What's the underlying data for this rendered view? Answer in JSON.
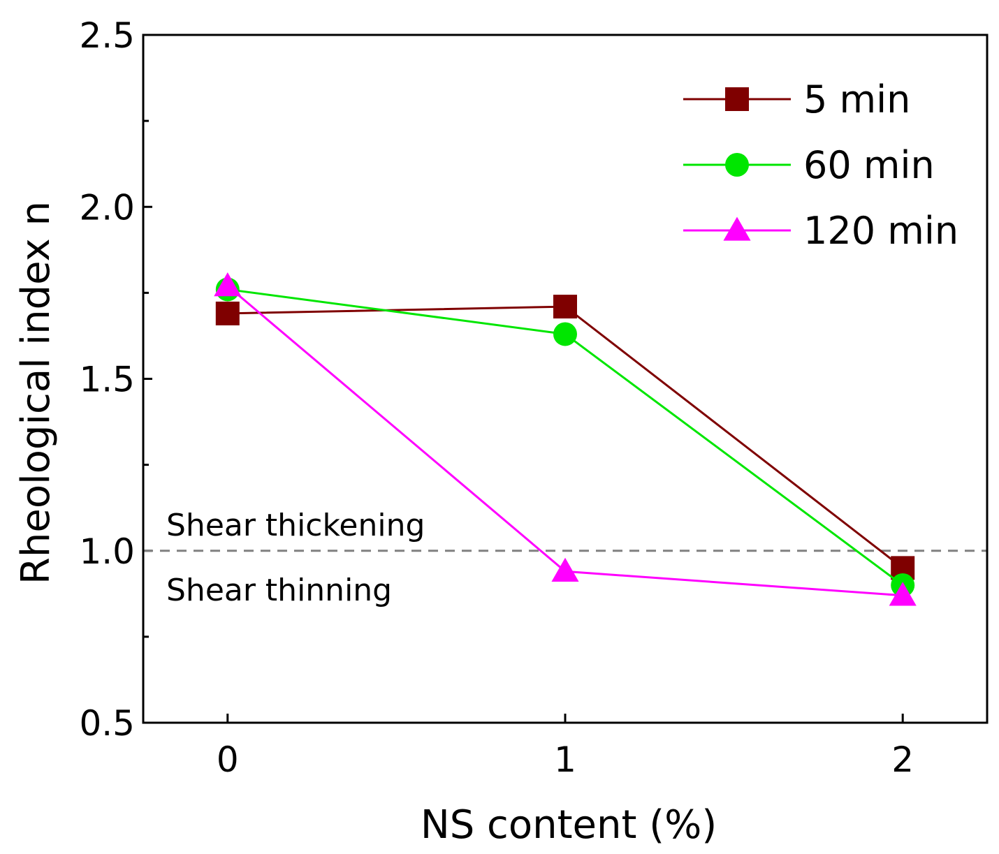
{
  "chart_data": {
    "type": "line",
    "title": "",
    "xlabel": "NS content (%)",
    "ylabel": "Rheological index  n",
    "x": [
      0,
      1,
      2
    ],
    "x_tick_labels": [
      "0",
      "1",
      "2"
    ],
    "xlim": [
      -0.25,
      2.25
    ],
    "ylim": [
      0.5,
      2.5
    ],
    "y_ticks": [
      0.5,
      1.0,
      1.5,
      2.0,
      2.5
    ],
    "y_tick_labels": [
      "0.5",
      "1.0",
      "1.5",
      "2.0",
      "2.5"
    ],
    "grid": false,
    "legend_position": "top-right",
    "series": [
      {
        "name": "5 min",
        "values": [
          1.69,
          1.71,
          0.95
        ],
        "color": "#7f0000",
        "marker": "square"
      },
      {
        "name": "60 min",
        "values": [
          1.76,
          1.63,
          0.9
        ],
        "color": "#00e600",
        "marker": "circle"
      },
      {
        "name": "120 min",
        "values": [
          1.77,
          0.94,
          0.87
        ],
        "color": "#ff00ff",
        "marker": "triangle"
      }
    ],
    "reference_line": {
      "y": 1.0,
      "color": "#808080",
      "style": "dashed"
    },
    "annotations": [
      "Shear thickening",
      "Shear thinning"
    ]
  }
}
